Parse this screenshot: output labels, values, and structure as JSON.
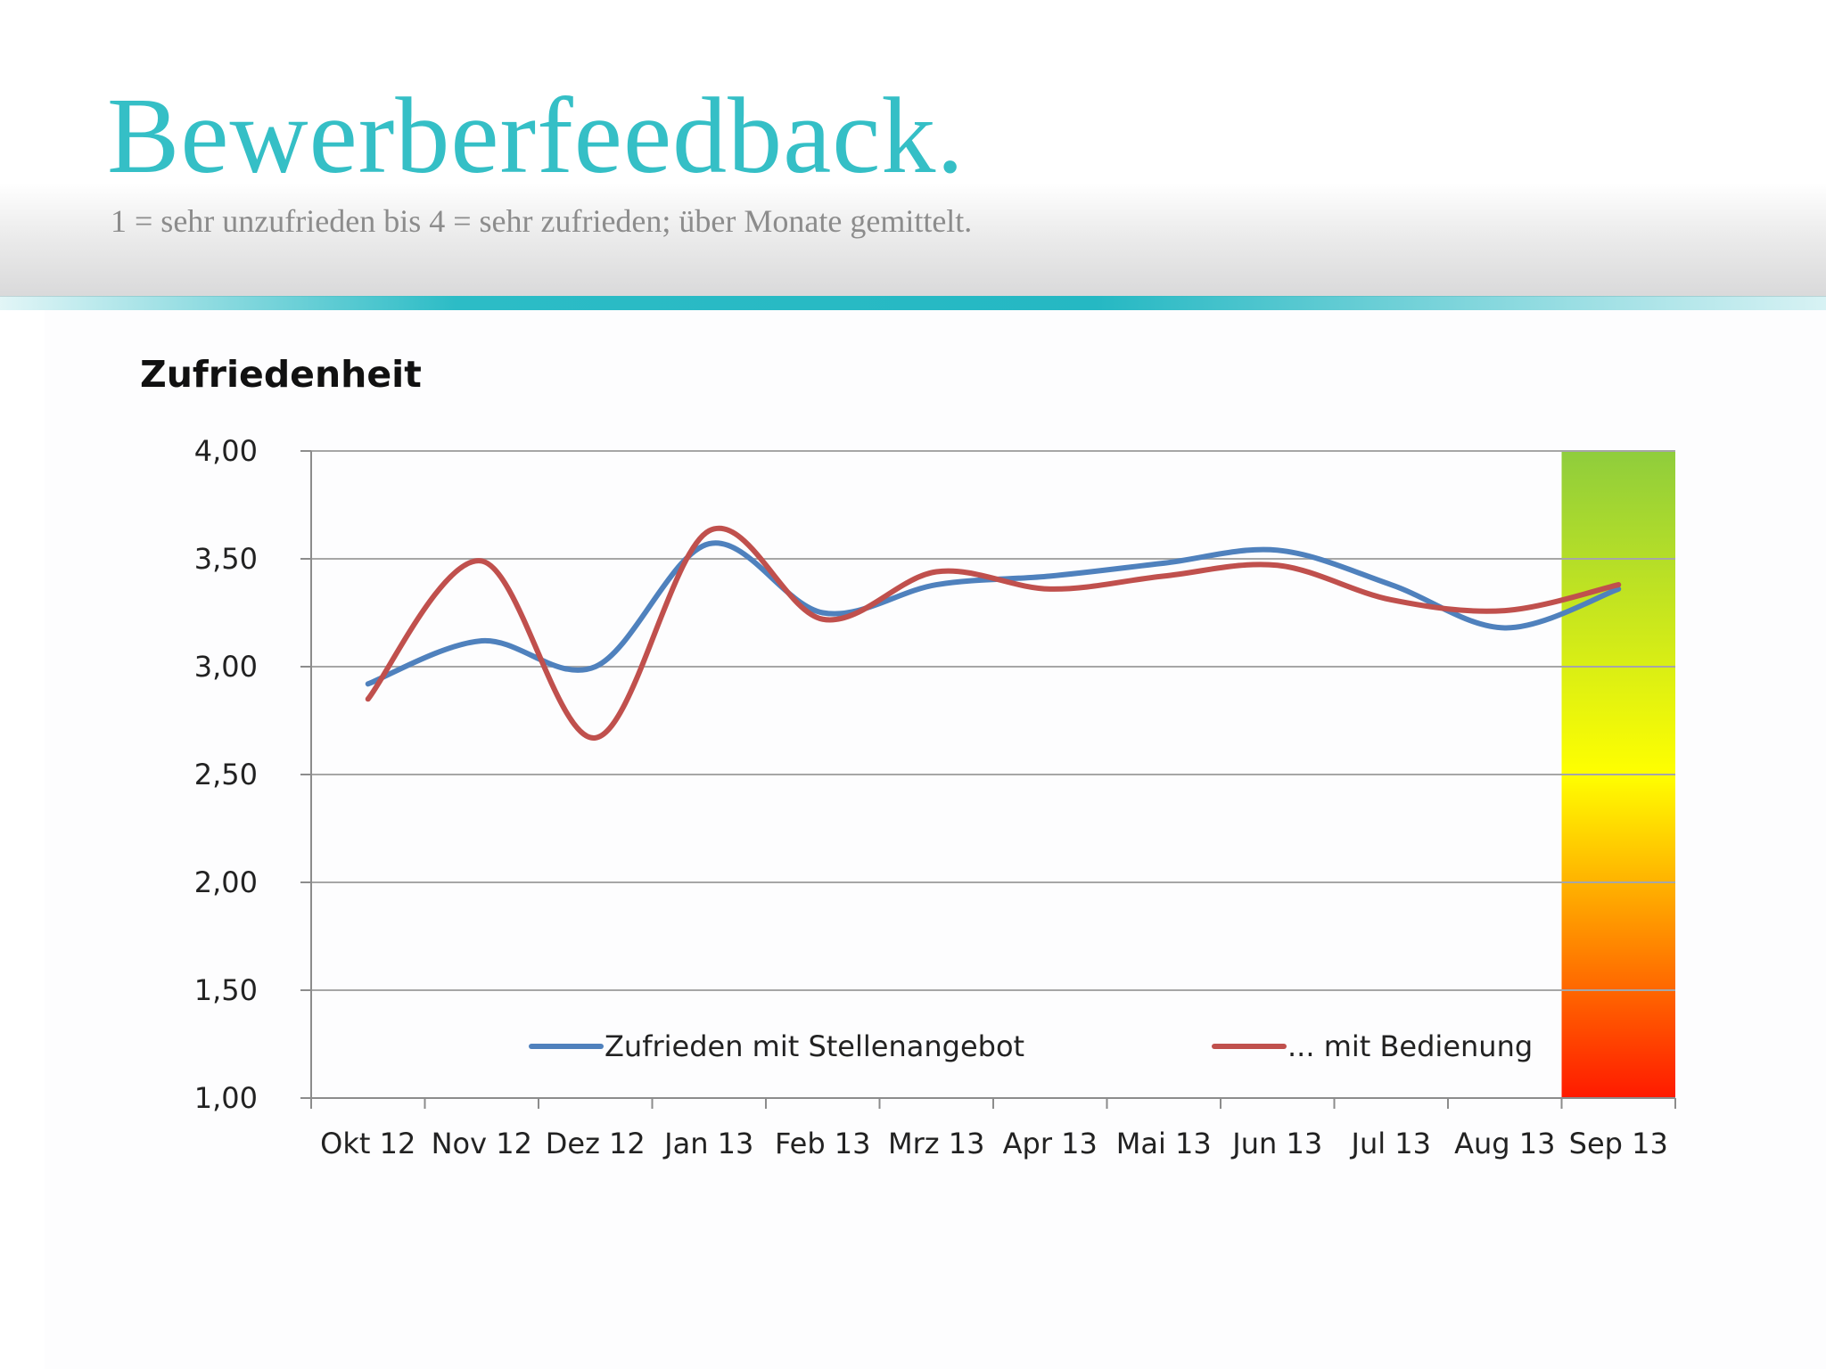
{
  "slide": {
    "title": "Bewerberfeedback.",
    "subtitle": "1 = sehr unzufrieden bis 4 = sehr zufrieden; über Monate gemittelt."
  },
  "colors": {
    "title": "#35bfc6",
    "accent_rule": "#25b8c3",
    "series_blue": "#4f81bd",
    "series_red": "#c0504d",
    "scale_top": "#8fcd3c",
    "scale_mid": "#ffff00",
    "scale_bottom": "#ff1a00"
  },
  "chart_data": {
    "type": "line",
    "title": "Zufriedenheit",
    "xlabel": "",
    "ylabel": "",
    "categories": [
      "Okt 12",
      "Nov 12",
      "Dez 12",
      "Jan 13",
      "Feb 13",
      "Mrz 13",
      "Apr 13",
      "Mai 13",
      "Jun 13",
      "Jul 13",
      "Aug 13",
      "Sep 13"
    ],
    "y_ticks": [
      "4,00",
      "3,50",
      "3,00",
      "2,50",
      "2,00",
      "1,50",
      "1,00"
    ],
    "ylim": [
      1,
      4
    ],
    "grid": true,
    "smooth": true,
    "legend_position": "bottom-inside",
    "color_scale_band": {
      "category": "Sep 13",
      "from_value": 1,
      "to_value": 4,
      "colors": [
        "#ff1a00",
        "#ffff00",
        "#8fcd3c"
      ]
    },
    "series": [
      {
        "name": "Zufrieden mit Stellenangebot",
        "color": "#4f81bd",
        "values": [
          2.92,
          3.12,
          3.0,
          3.57,
          3.25,
          3.38,
          3.42,
          3.48,
          3.54,
          3.38,
          3.18,
          3.36
        ]
      },
      {
        "name": "... mit Bedienung",
        "color": "#c0504d",
        "values": [
          2.85,
          3.49,
          2.67,
          3.63,
          3.22,
          3.44,
          3.36,
          3.42,
          3.47,
          3.31,
          3.26,
          3.38
        ]
      }
    ]
  }
}
